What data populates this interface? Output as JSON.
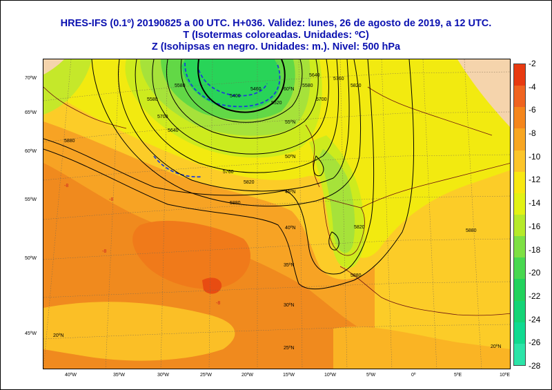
{
  "title": {
    "line1": "HRES-IFS (0.1º) 20190825 a 00 UTC.  H+036. Validez: lunes, 26 de agosto de 2019,  a  12 UTC.",
    "line2": "T (Isotermas coloreadas. Unidades: ºC)",
    "line3": "Z (Isohipsas en negro. Unidades: m.).   Nivel: 500 hPa"
  },
  "colors": {
    "title": "#0a10b0",
    "orange_dark": "#f07a1a",
    "orange": "#f7a324",
    "yellow_orange": "#fccc28",
    "yellow": "#f5f500",
    "yellow_green": "#d4ef1e",
    "light_green": "#a8e63c",
    "green": "#5ad24a",
    "bright_green": "#28d850",
    "land_beige": "#f5d4ac"
  },
  "colorbar": {
    "labels": [
      "-2",
      "-4",
      "-6",
      "-8",
      "-10",
      "-12",
      "-14",
      "-16",
      "-18",
      "-20",
      "-22",
      "-24",
      "-26",
      "-28"
    ],
    "colors": [
      "#e83a10",
      "#f06420",
      "#f5861c",
      "#f8a622",
      "#fcc52a",
      "#f8e812",
      "#e2f214",
      "#b6ea2a",
      "#7ee044",
      "#48d850",
      "#22d25c",
      "#14d476",
      "#10da90",
      "#2ce4a8"
    ]
  },
  "map": {
    "lat_labels": [
      "70ºW",
      "65ºW",
      "60ºW",
      "55ºW",
      "50ºW",
      "45ºW"
    ],
    "lon_labels": [
      "40ºW",
      "35ºW",
      "30ºW",
      "25ºW",
      "20ºW",
      "15ºW",
      "10ºW",
      "5ºW",
      "0º",
      "5ºE",
      "10ºE"
    ],
    "inner_lat_labels": [
      "60ºN",
      "55ºN",
      "50ºN",
      "45ºN",
      "40ºN",
      "35ºN",
      "30ºN",
      "25ºN",
      "20ºN",
      "20ºN"
    ],
    "contour_labels": [
      "5580",
      "5400",
      "5520",
      "5580",
      "5640",
      "5700",
      "5760",
      "5820",
      "5880",
      "5460",
      "5580",
      "5640",
      "5700",
      "5760",
      "5820",
      "5880",
      "5820",
      "5880",
      "5880"
    ],
    "cold_labels": [
      "-8",
      "-8",
      "-8",
      "-8"
    ]
  }
}
